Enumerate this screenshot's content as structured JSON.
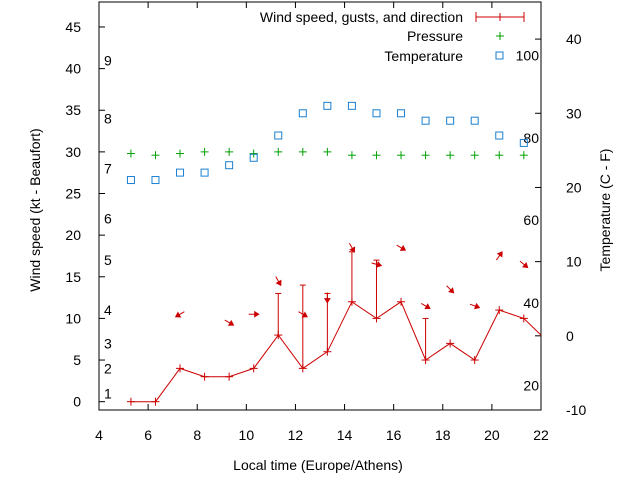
{
  "colors": {
    "wind": "#cc0000",
    "pressure": "#00a000",
    "temperature": "#1a7fd0",
    "axis": "#000000"
  },
  "chart_data": {
    "type": "line",
    "xlabel": "Local time (Europe/Athens)",
    "ylabel": "Wind speed (kt - Beaufort)",
    "y2label": "Temperature (C - F)",
    "xlim": [
      4,
      22
    ],
    "ylim": [
      -1,
      48
    ],
    "y2lim": [
      -10,
      45
    ],
    "x_ticks": [
      4,
      6,
      8,
      10,
      12,
      14,
      16,
      18,
      20,
      22
    ],
    "y_ticks": [
      0,
      5,
      10,
      15,
      20,
      25,
      30,
      35,
      40,
      45
    ],
    "y2_ticks": [
      -10,
      0,
      10,
      20,
      30,
      40
    ],
    "fahrenheit_labels": [
      {
        "label": "20",
        "celsius": -6.7
      },
      {
        "label": "40",
        "celsius": 4.4
      },
      {
        "label": "60",
        "celsius": 15.6
      },
      {
        "label": "80",
        "celsius": 26.7
      },
      {
        "label": "100",
        "celsius": 37.8
      }
    ],
    "beaufort_labels": [
      {
        "label": "1",
        "kt": 1
      },
      {
        "label": "2",
        "kt": 4
      },
      {
        "label": "3",
        "kt": 7
      },
      {
        "label": "4",
        "kt": 11
      },
      {
        "label": "5",
        "kt": 17
      },
      {
        "label": "6",
        "kt": 22
      },
      {
        "label": "7",
        "kt": 28
      },
      {
        "label": "8",
        "kt": 34
      },
      {
        "label": "9",
        "kt": 41
      }
    ],
    "legend": {
      "wind": "Wind speed, gusts, and direction",
      "pressure": "Pressure",
      "temperature": "Temperature"
    },
    "series": [
      {
        "name": "Wind speed, gusts, and direction",
        "x": [
          5.3,
          6.3,
          7.3,
          8.3,
          9.3,
          10.3,
          11.3,
          12.3,
          13.3,
          14.3,
          15.3,
          16.3,
          17.3,
          18.3,
          19.3,
          20.3,
          21.3,
          22
        ],
        "values": [
          0,
          0,
          4,
          3,
          3,
          4,
          8,
          4,
          6,
          12,
          10,
          12,
          5,
          7,
          5,
          11,
          10,
          8
        ],
        "gusts": [
          null,
          null,
          null,
          null,
          null,
          null,
          13,
          14,
          13,
          18,
          17,
          null,
          10,
          null,
          null,
          null,
          null,
          null
        ],
        "direction_deg": [
          null,
          null,
          240,
          null,
          120,
          90,
          150,
          120,
          180,
          150,
          105,
          120,
          120,
          135,
          110,
          35,
          130,
          null
        ]
      },
      {
        "name": "Pressure",
        "x": [
          5.3,
          6.3,
          7.3,
          8.3,
          9.3,
          10.3,
          11.3,
          12.3,
          13.3,
          14.3,
          15.3,
          16.3,
          17.3,
          18.3,
          19.3,
          20.3,
          21.3
        ],
        "values": [
          29.8,
          29.6,
          29.8,
          30.0,
          30.0,
          29.8,
          30.0,
          30.0,
          30.0,
          29.6,
          29.6,
          29.6,
          29.6,
          29.6,
          29.6,
          29.6,
          29.6
        ]
      },
      {
        "name": "Temperature",
        "x": [
          5.3,
          6.3,
          7.3,
          8.3,
          9.3,
          10.3,
          11.3,
          12.3,
          13.3,
          14.3,
          15.3,
          16.3,
          17.3,
          18.3,
          19.3,
          20.3,
          21.3
        ],
        "values": [
          21,
          21,
          22,
          22,
          23,
          24,
          27,
          30,
          31,
          31,
          30,
          30,
          29,
          29,
          29,
          27,
          26
        ]
      }
    ]
  }
}
